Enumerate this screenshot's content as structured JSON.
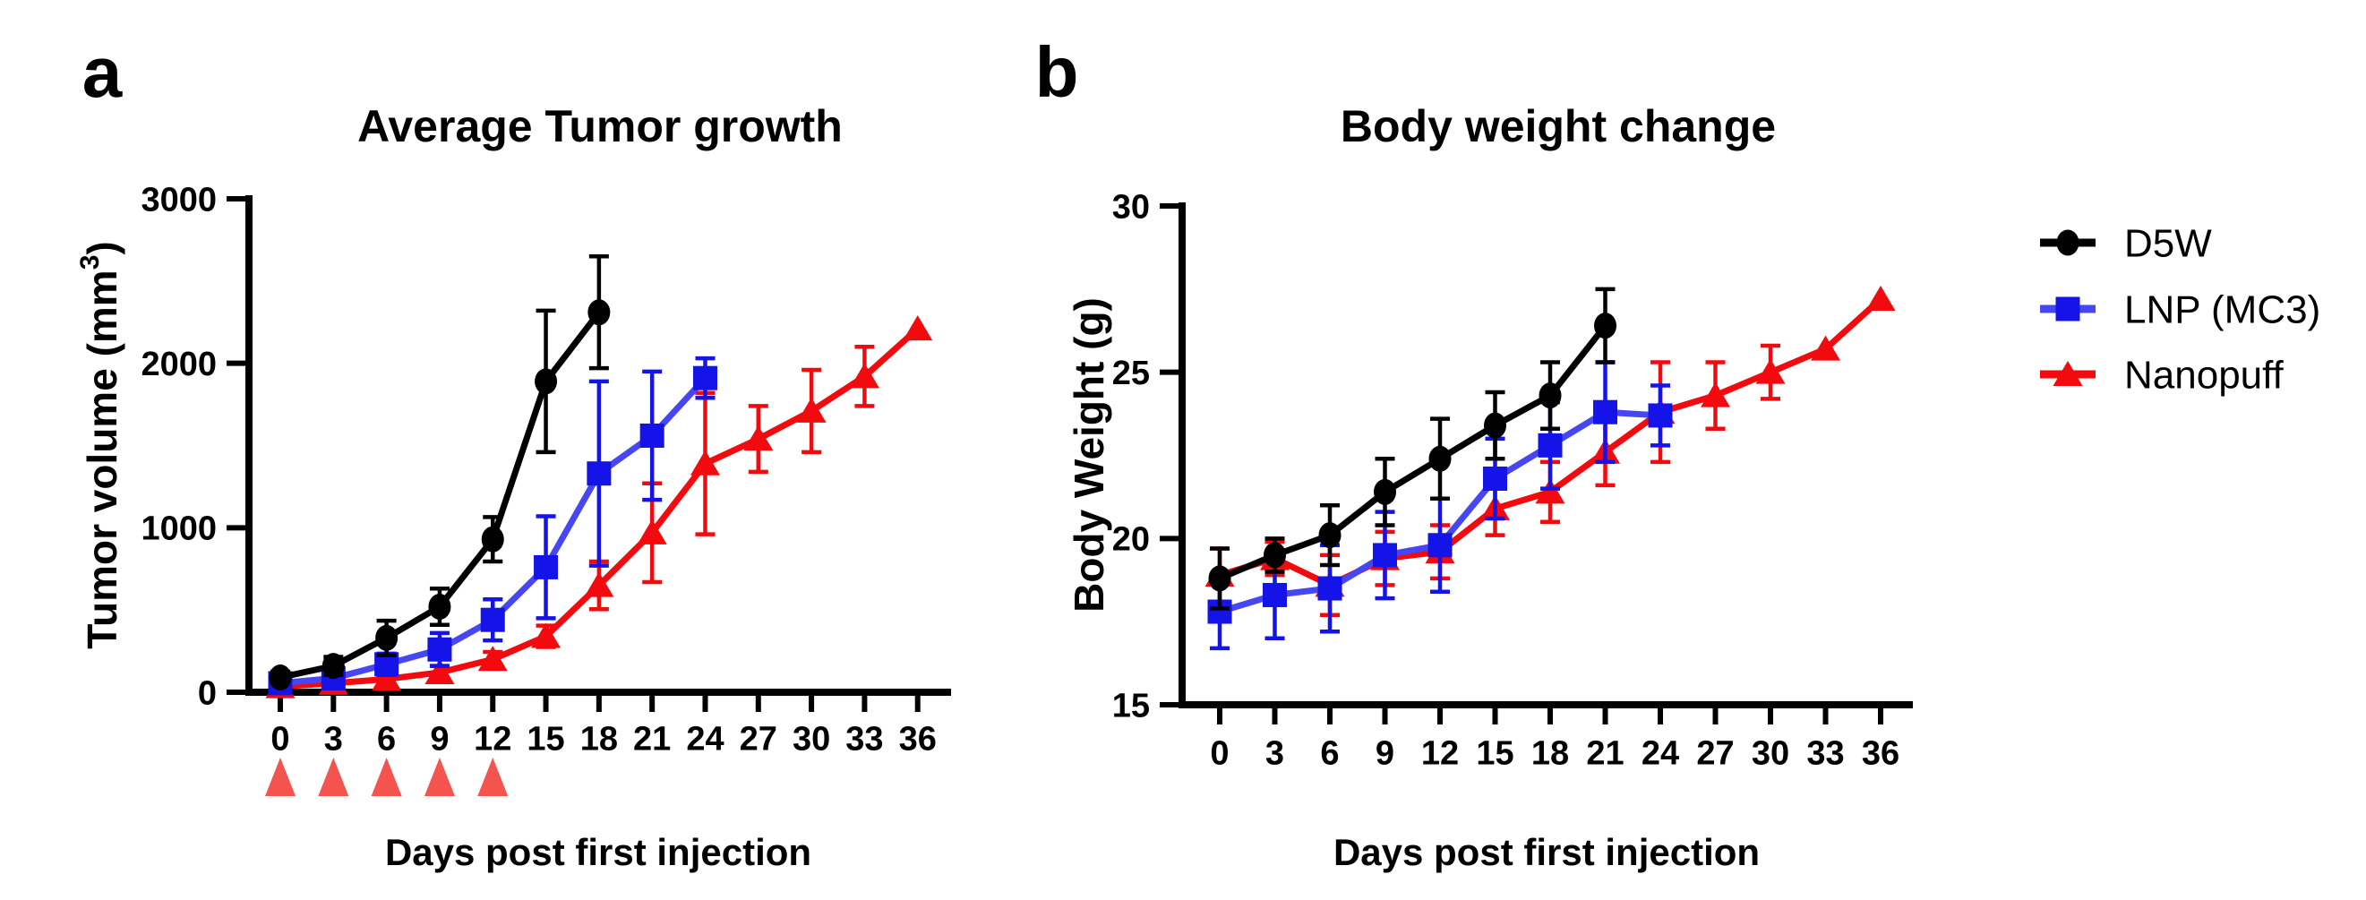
{
  "figure": {
    "panels": [
      {
        "letter": "a"
      },
      {
        "letter": "b"
      }
    ]
  },
  "legend": {
    "items": [
      {
        "label": "D5W",
        "marker": "circle",
        "color": "#000000",
        "line_color": "#000000"
      },
      {
        "label": "LNP (MC3)",
        "marker": "square",
        "color": "#1414e8",
        "line_color": "#4646f2"
      },
      {
        "label": "Nanopuff",
        "marker": "triangle",
        "color": "#f20a0e",
        "line_color": "#f20a0e"
      }
    ]
  },
  "chart_data": [
    {
      "id": "tumor",
      "type": "line",
      "title": "Average Tumor growth",
      "xlabel": "Days post first injection",
      "ylabel": {
        "prefix": "Tumor volume (mm",
        "sup": "3",
        "suffix": ")"
      },
      "x_ticks": [
        0,
        3,
        6,
        9,
        12,
        15,
        18,
        21,
        24,
        27,
        30,
        33,
        36
      ],
      "y_ticks": [
        0,
        1000,
        2000,
        3000
      ],
      "xlim": [
        0,
        36
      ],
      "ylim": [
        0,
        3000
      ],
      "grid": false,
      "injection_days": [
        0,
        3,
        6,
        9,
        12
      ],
      "injection_marker_color": "#f4534e",
      "series": [
        {
          "name": "D5W",
          "marker": "circle",
          "color": "#000000",
          "line_color": "#000000",
          "x": [
            0,
            3,
            6,
            9,
            12,
            15,
            18
          ],
          "y": [
            90,
            160,
            330,
            520,
            930,
            1890,
            2310
          ],
          "err": [
            35,
            55,
            105,
            110,
            135,
            430,
            340
          ]
        },
        {
          "name": "LNP (MC3)",
          "marker": "square",
          "color": "#1414e8",
          "line_color": "#4646f2",
          "x": [
            0,
            3,
            6,
            9,
            12,
            15,
            18,
            21,
            24
          ],
          "y": [
            55,
            85,
            170,
            260,
            440,
            760,
            1330,
            1560,
            1910
          ],
          "err": [
            30,
            45,
            65,
            100,
            125,
            310,
            560,
            390,
            120
          ]
        },
        {
          "name": "Nanopuff",
          "marker": "triangle",
          "color": "#f20a0e",
          "line_color": "#f20a0e",
          "x": [
            0,
            3,
            6,
            9,
            12,
            15,
            18,
            21,
            24,
            27,
            30,
            33,
            36
          ],
          "y": [
            35,
            55,
            80,
            120,
            200,
            340,
            650,
            970,
            1390,
            1540,
            1710,
            1920,
            2210
          ],
          "err": [
            15,
            20,
            30,
            40,
            45,
            65,
            145,
            300,
            430,
            200,
            250,
            180,
            0
          ]
        }
      ]
    },
    {
      "id": "weight",
      "type": "line",
      "title": "Body weight change",
      "xlabel": "Days post first injection",
      "ylabel": {
        "prefix": "Body Weight (g)",
        "sup": "",
        "suffix": ""
      },
      "x_ticks": [
        0,
        3,
        6,
        9,
        12,
        15,
        18,
        21,
        24,
        27,
        30,
        33,
        36
      ],
      "y_ticks": [
        15,
        20,
        25,
        30
      ],
      "xlim": [
        0,
        36
      ],
      "ylim": [
        15,
        30
      ],
      "grid": false,
      "series": [
        {
          "name": "D5W",
          "marker": "circle",
          "color": "#000000",
          "line_color": "#000000",
          "x": [
            0,
            3,
            6,
            9,
            12,
            15,
            18,
            21
          ],
          "y": [
            18.8,
            19.5,
            20.1,
            21.4,
            22.4,
            23.4,
            24.3,
            26.4
          ],
          "err": [
            0.9,
            0.5,
            0.9,
            1.0,
            1.2,
            1.0,
            1.0,
            1.1
          ]
        },
        {
          "name": "LNP (MC3)",
          "marker": "square",
          "color": "#1414e8",
          "line_color": "#4646f2",
          "x": [
            0,
            3,
            6,
            9,
            12,
            15,
            18,
            21,
            24
          ],
          "y": [
            17.8,
            18.3,
            18.5,
            19.5,
            19.8,
            21.8,
            22.8,
            23.8,
            23.7
          ],
          "err": [
            1.1,
            1.3,
            1.3,
            1.3,
            1.4,
            1.2,
            1.3,
            1.5,
            0.9
          ]
        },
        {
          "name": "Nanopuff",
          "marker": "triangle",
          "color": "#f20a0e",
          "line_color": "#f20a0e",
          "x": [
            0,
            3,
            6,
            9,
            12,
            15,
            18,
            21,
            24,
            27,
            30,
            33,
            36
          ],
          "y": [
            18.9,
            19.4,
            18.6,
            19.4,
            19.6,
            20.9,
            21.4,
            22.6,
            23.8,
            24.3,
            25.0,
            25.7,
            27.2
          ],
          "err": [
            0.8,
            0.5,
            0.9,
            0.8,
            0.8,
            0.8,
            0.9,
            1.0,
            1.5,
            1.0,
            0.8,
            0,
            0
          ]
        }
      ]
    }
  ]
}
